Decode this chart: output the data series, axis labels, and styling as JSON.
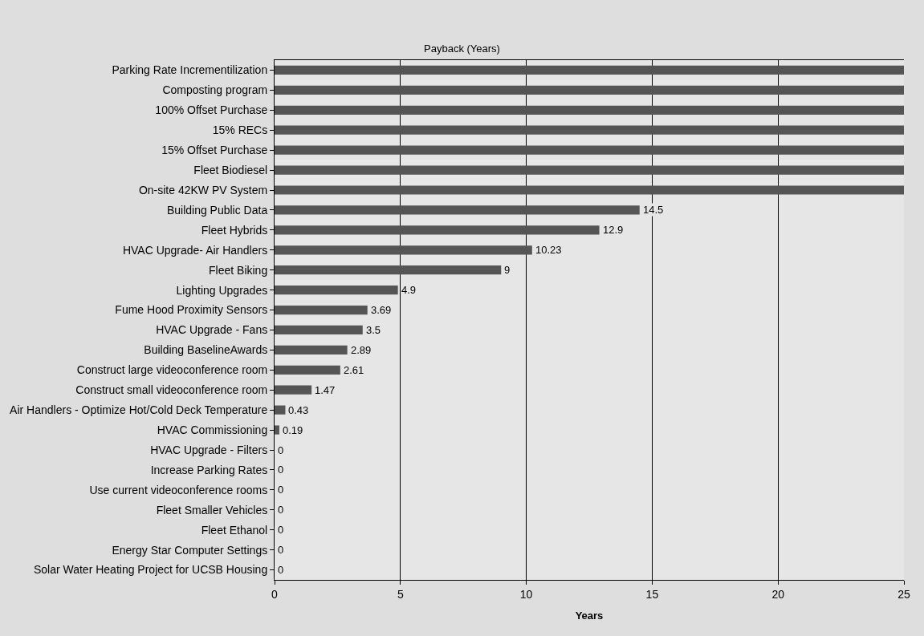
{
  "chart_data": {
    "type": "bar",
    "orientation": "horizontal",
    "title": "Payback (Years)",
    "xlabel": "Years",
    "categories": [
      "Parking Rate Incrementilization",
      "Composting program",
      "100% Offset Purchase",
      "15% RECs",
      "15% Offset Purchase",
      "Fleet Biodiesel",
      "On-site 42KW PV System",
      "Building Public Data",
      "Fleet Hybrids",
      "HVAC Upgrade- Air Handlers",
      "Fleet Biking",
      "Lighting Upgrades",
      "Fume Hood Proximity Sensors",
      "HVAC Upgrade - Fans",
      "Building BaselineAwards",
      "Construct large videoconference room",
      "Construct small videoconference room",
      "Air Handlers - Optimize Hot/Cold Deck Temperature",
      "HVAC Commissioning",
      "HVAC Upgrade - Filters",
      "Increase Parking Rates",
      "Use current videoconference rooms",
      "Fleet Smaller Vehicles",
      "Fleet Ethanol",
      "Energy Star Computer Settings",
      "Solar Water Heating Project for UCSB Housing"
    ],
    "values": [
      25,
      25,
      25,
      25,
      25,
      25,
      25,
      14.5,
      12.9,
      10.23,
      9,
      4.9,
      3.69,
      3.5,
      2.89,
      2.61,
      1.47,
      0.43,
      0.19,
      0,
      0,
      0,
      0,
      0,
      0,
      0
    ],
    "value_labels": [
      null,
      null,
      null,
      null,
      null,
      null,
      null,
      "14.5",
      "12.9",
      "10.23",
      "9",
      "4.9",
      "3.69",
      "3.5",
      "2.89",
      "2.61",
      "1.47",
      "0.43",
      "0.19",
      "0",
      "0",
      "0",
      "0",
      "0",
      "0",
      "0"
    ],
    "color": "#555555",
    "xlim": [
      0,
      25
    ],
    "xticks": [
      0,
      5,
      10,
      15,
      20,
      25
    ],
    "grid": "x",
    "legend": false
  }
}
